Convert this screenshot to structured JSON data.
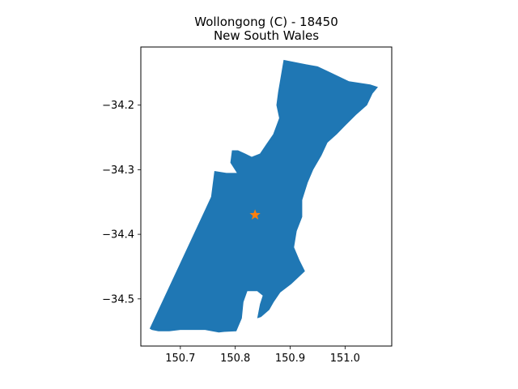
{
  "chart_data": {
    "type": "map",
    "title_line1": "Wollongong (C) - 18450",
    "title_line2": "New South Wales",
    "region_color": "#1f77b4",
    "marker_color": "#ff7f0e",
    "marker_symbol": "star",
    "marker": {
      "lon": 150.836,
      "lat": -34.37
    },
    "xlim": [
      150.628,
      151.085
    ],
    "ylim": [
      -34.573,
      -34.11
    ],
    "xticks": [
      150.7,
      150.8,
      150.9,
      151.0
    ],
    "xtick_labels": [
      "150.7",
      "150.8",
      "150.9",
      "151.0"
    ],
    "yticks": [
      -34.2,
      -34.3,
      -34.4,
      -34.5
    ],
    "ytick_labels": [
      "−34.2",
      "−34.3",
      "−34.4",
      "−34.5"
    ],
    "grid": false,
    "boundary": [
      [
        150.644,
        -34.546
      ],
      [
        150.756,
        -34.342
      ],
      [
        150.762,
        -34.302
      ],
      [
        150.784,
        -34.305
      ],
      [
        150.803,
        -34.305
      ],
      [
        150.791,
        -34.289
      ],
      [
        150.794,
        -34.27
      ],
      [
        150.805,
        -34.27
      ],
      [
        150.818,
        -34.275
      ],
      [
        150.83,
        -34.28
      ],
      [
        150.845,
        -34.275
      ],
      [
        150.857,
        -34.26
      ],
      [
        150.869,
        -34.245
      ],
      [
        150.88,
        -34.22
      ],
      [
        150.875,
        -34.2
      ],
      [
        150.878,
        -34.18
      ],
      [
        150.888,
        -34.13
      ],
      [
        150.93,
        -34.137
      ],
      [
        150.95,
        -34.14
      ],
      [
        150.975,
        -34.15
      ],
      [
        151.007,
        -34.163
      ],
      [
        151.046,
        -34.168
      ],
      [
        151.06,
        -34.172
      ],
      [
        151.05,
        -34.182
      ],
      [
        151.04,
        -34.2
      ],
      [
        151.02,
        -34.215
      ],
      [
        151.0,
        -34.232
      ],
      [
        150.985,
        -34.245
      ],
      [
        150.968,
        -34.258
      ],
      [
        150.957,
        -34.278
      ],
      [
        150.942,
        -34.3
      ],
      [
        150.932,
        -34.32
      ],
      [
        150.922,
        -34.347
      ],
      [
        150.922,
        -34.373
      ],
      [
        150.912,
        -34.395
      ],
      [
        150.907,
        -34.42
      ],
      [
        150.917,
        -34.44
      ],
      [
        150.927,
        -34.457
      ],
      [
        150.902,
        -34.477
      ],
      [
        150.882,
        -34.49
      ],
      [
        150.87,
        -34.505
      ],
      [
        150.862,
        -34.517
      ],
      [
        150.847,
        -34.528
      ],
      [
        150.84,
        -34.53
      ],
      [
        150.845,
        -34.508
      ],
      [
        150.85,
        -34.495
      ],
      [
        150.84,
        -34.488
      ],
      [
        150.822,
        -34.488
      ],
      [
        150.815,
        -34.505
      ],
      [
        150.812,
        -34.53
      ],
      [
        150.802,
        -34.55
      ],
      [
        150.78,
        -34.551
      ],
      [
        150.77,
        -34.552
      ],
      [
        150.745,
        -34.548
      ],
      [
        150.72,
        -34.548
      ],
      [
        150.7,
        -34.548
      ],
      [
        150.68,
        -34.55
      ],
      [
        150.66,
        -34.55
      ],
      [
        150.648,
        -34.548
      ]
    ]
  }
}
